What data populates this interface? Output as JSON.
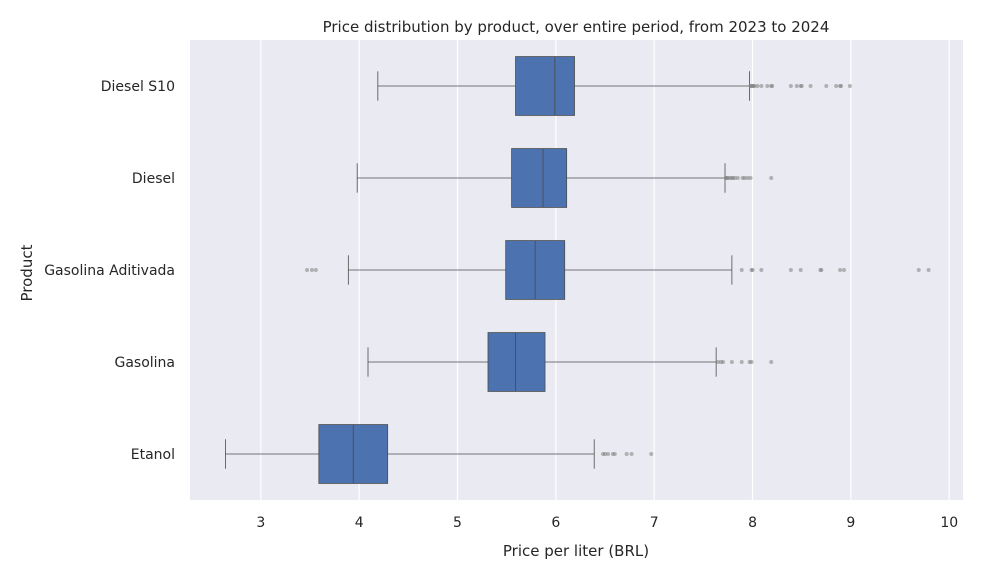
{
  "chart_data": {
    "type": "box",
    "orientation": "horizontal",
    "title": "Price distribution by product, over entire period, from 2023 to 2024",
    "xlabel": "Price per liter (BRL)",
    "ylabel": "Product",
    "xlim": [
      2.28,
      10.14
    ],
    "xticks": [
      3,
      4,
      5,
      6,
      7,
      8,
      9,
      10
    ],
    "grid": true,
    "colors": {
      "plot_bg": "#eaeaf2",
      "grid": "#ffffff",
      "box": "#4c72b0",
      "line": "#4d4d4d",
      "outlier": "#808080"
    },
    "categories": [
      "Diesel S10",
      "Diesel",
      "Gasolina Aditivada",
      "Gasolina",
      "Etanol"
    ],
    "boxes": [
      {
        "category": "Diesel S10",
        "whisker_low": 4.19,
        "q1": 5.59,
        "median": 5.99,
        "q3": 6.19,
        "whisker_high": 7.97,
        "outliers": [
          7.98,
          7.99,
          8.0,
          8.01,
          8.02,
          8.05,
          8.09,
          8.15,
          8.19,
          8.2,
          8.39,
          8.45,
          8.49,
          8.5,
          8.59,
          8.75,
          8.85,
          8.89,
          8.9,
          8.99
        ]
      },
      {
        "category": "Diesel",
        "whisker_low": 3.98,
        "q1": 5.55,
        "median": 5.87,
        "q3": 6.11,
        "whisker_high": 7.72,
        "outliers": [
          7.73,
          7.74,
          7.75,
          7.77,
          7.79,
          7.8,
          7.82,
          7.85,
          7.9,
          7.92,
          7.95,
          7.98,
          8.19
        ]
      },
      {
        "category": "Gasolina Aditivada",
        "whisker_low": 3.89,
        "q1": 5.49,
        "median": 5.79,
        "q3": 6.09,
        "whisker_high": 7.79,
        "outliers": [
          3.47,
          3.52,
          3.56,
          7.89,
          7.99,
          8.0,
          8.09,
          8.39,
          8.49,
          8.69,
          8.7,
          8.89,
          8.93,
          9.69,
          9.79
        ]
      },
      {
        "category": "Gasolina",
        "whisker_low": 4.09,
        "q1": 5.31,
        "median": 5.59,
        "q3": 5.89,
        "whisker_high": 7.63,
        "outliers": [
          7.65,
          7.68,
          7.7,
          7.79,
          7.89,
          7.97,
          7.99,
          8.19
        ]
      },
      {
        "category": "Etanol",
        "whisker_low": 2.64,
        "q1": 3.59,
        "median": 3.94,
        "q3": 4.29,
        "whisker_high": 6.39,
        "outliers": [
          6.48,
          6.5,
          6.53,
          6.58,
          6.6,
          6.72,
          6.77,
          6.97
        ]
      }
    ]
  }
}
